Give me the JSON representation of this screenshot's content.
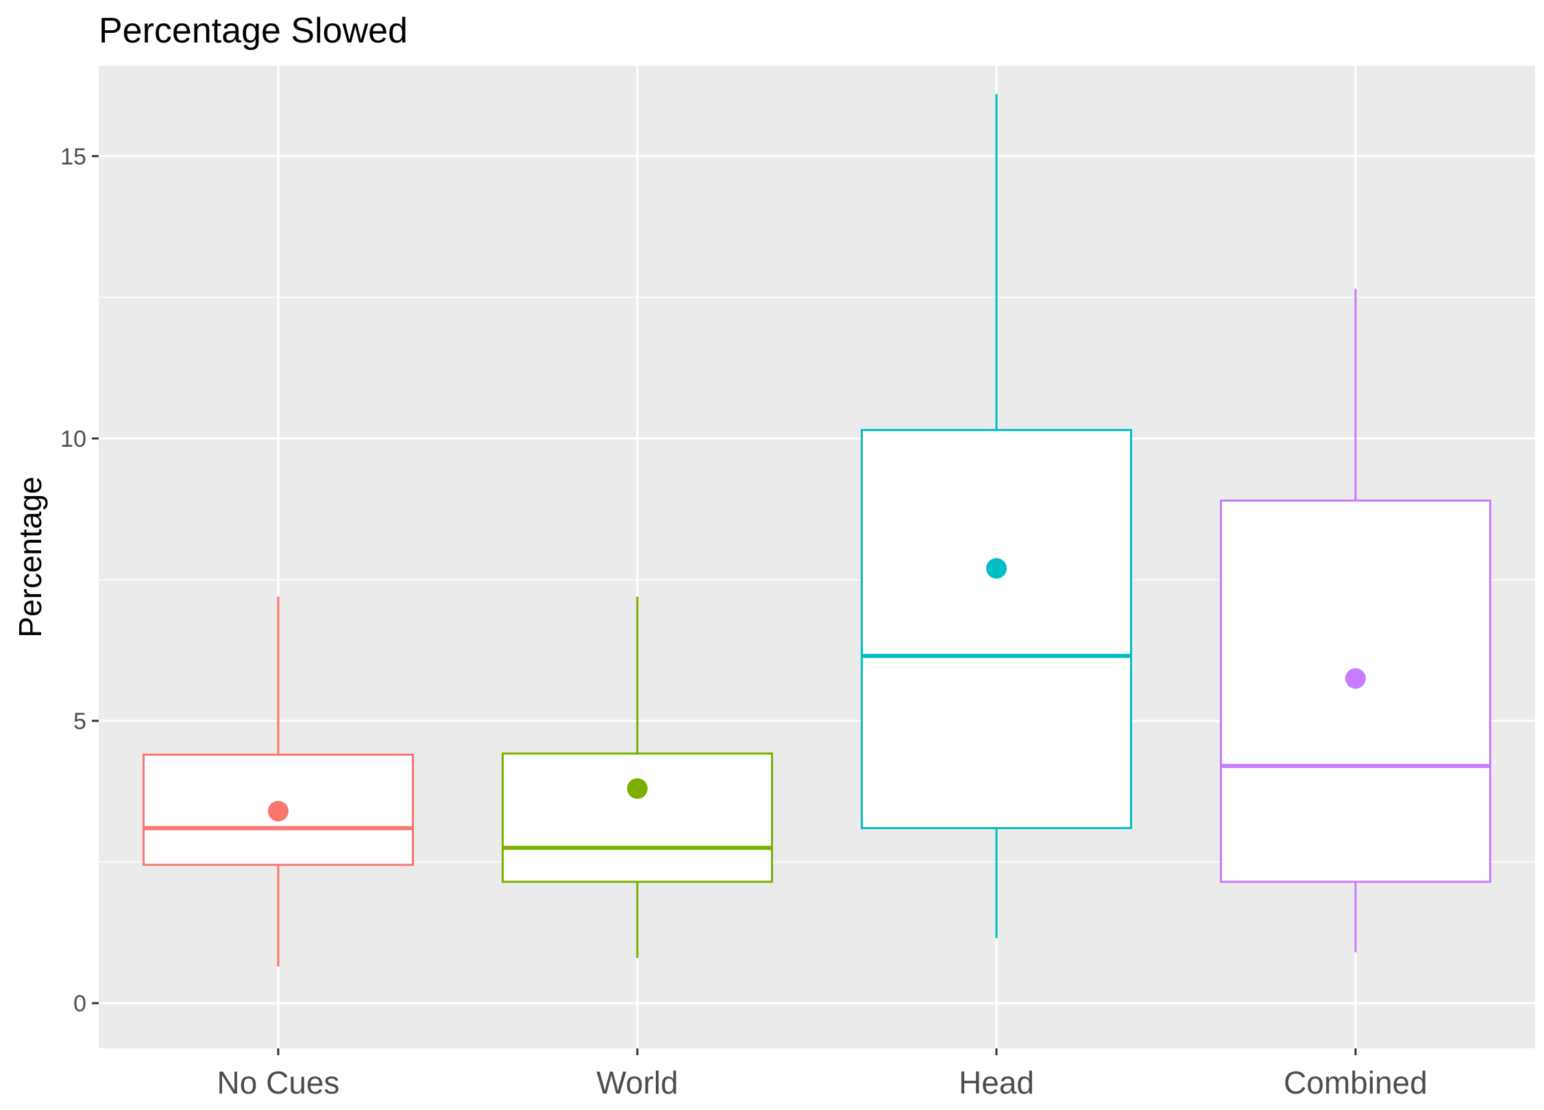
{
  "chart_data": {
    "type": "box",
    "title": "Percentage Slowed",
    "xlabel": "",
    "ylabel": "Percentage",
    "ylim": [
      -0.8,
      16.6
    ],
    "yticks": [
      0,
      5,
      10,
      15
    ],
    "ytick_labels": [
      "0",
      "5",
      "10",
      "15"
    ],
    "grid": true,
    "legend": "none",
    "categories": [
      "No Cues",
      "World",
      "Head",
      "Combined"
    ],
    "series": [
      {
        "category": "No Cues",
        "color": "#F8766D",
        "whisker_low": 0.65,
        "q1": 2.45,
        "median": 3.1,
        "q3": 4.4,
        "whisker_high": 7.2,
        "mean": 3.4
      },
      {
        "category": "World",
        "color": "#7CAE00",
        "whisker_low": 0.8,
        "q1": 2.15,
        "median": 2.75,
        "q3": 4.42,
        "whisker_high": 7.2,
        "mean": 3.8
      },
      {
        "category": "Head",
        "color": "#00BFC4",
        "whisker_low": 1.15,
        "q1": 3.1,
        "median": 6.15,
        "q3": 10.15,
        "whisker_high": 16.1,
        "mean": 7.7
      },
      {
        "category": "Combined",
        "color": "#C77CFF",
        "whisker_low": 0.9,
        "q1": 2.15,
        "median": 4.2,
        "q3": 8.9,
        "whisker_high": 12.65,
        "mean": 5.75
      }
    ]
  }
}
